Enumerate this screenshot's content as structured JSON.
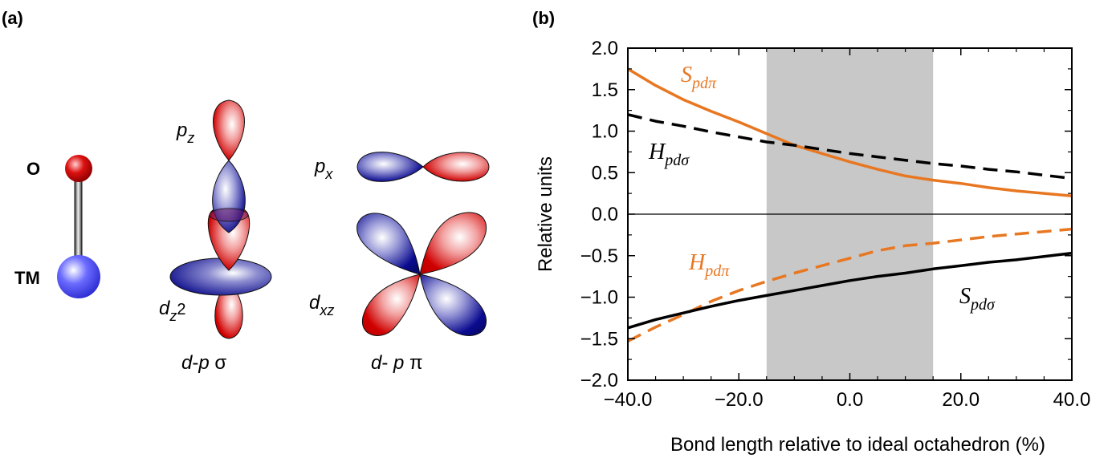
{
  "panel_a": {
    "label": "(a)",
    "atom_o": "O",
    "atom_tm": "TM",
    "pz": {
      "base": "p",
      "sub": "z"
    },
    "dz2": {
      "base": "d",
      "sub": "z",
      "sup": "2"
    },
    "sigma_caption": {
      "d": "d",
      "sep": "-",
      "p": "p",
      "sym": " σ"
    },
    "px": {
      "base": "p",
      "sub": "x"
    },
    "dxz": {
      "base": "d",
      "sub": "xz"
    },
    "pi_caption": {
      "d": "d",
      "sep": "- ",
      "p": "p",
      "sym": " π"
    },
    "colors": {
      "red_lobe": "#d00000",
      "blue_lobe": "#0a0a90",
      "o_atom": "#cc0000",
      "tm_atom": "#5a5aff"
    }
  },
  "panel_b": {
    "label": "(b)",
    "series_labels": {
      "S_pdpi": {
        "base": "S",
        "sub": "pdπ"
      },
      "H_pdsigma": {
        "base": "H",
        "sub": "pdσ"
      },
      "H_pdpi": {
        "base": "H",
        "sub": "pdπ"
      },
      "S_pdsigma": {
        "base": "S",
        "sub": "pdσ"
      }
    }
  },
  "chart_data": {
    "type": "line",
    "title": "",
    "xlabel": "Bond length relative to ideal octahedron (%)",
    "ylabel": "Relative units",
    "xlim": [
      -40,
      40
    ],
    "ylim": [
      -2.0,
      2.0
    ],
    "xticks": [
      -40,
      -20,
      0,
      20,
      40
    ],
    "xtick_labels": [
      "−40.0",
      "−20.0",
      "0.0",
      "20.0",
      "40.0"
    ],
    "yticks": [
      -2.0,
      -1.5,
      -1.0,
      -0.5,
      0.0,
      0.5,
      1.0,
      1.5,
      2.0
    ],
    "ytick_labels": [
      "−2.0",
      "−1.5",
      "−1.0",
      "−0.5",
      "0.0",
      "0.5",
      "1.0",
      "1.5",
      "2.0"
    ],
    "grid": false,
    "shaded_region": {
      "x": [
        -15,
        15
      ],
      "color": "#c8c8c8"
    },
    "zero_line": true,
    "x": [
      -40,
      -35,
      -30,
      -25,
      -20,
      -15,
      -10,
      -5,
      0,
      5,
      10,
      15,
      20,
      25,
      30,
      35,
      40
    ],
    "series": [
      {
        "id": "S_pdpi",
        "color": "#e87722",
        "style": "solid",
        "values": [
          1.75,
          1.55,
          1.38,
          1.24,
          1.11,
          0.97,
          0.83,
          0.73,
          0.63,
          0.54,
          0.46,
          0.41,
          0.37,
          0.32,
          0.28,
          0.25,
          0.22
        ]
      },
      {
        "id": "H_pdsigma",
        "color": "#000000",
        "style": "dashed",
        "values": [
          1.2,
          1.12,
          1.06,
          0.99,
          0.93,
          0.87,
          0.83,
          0.78,
          0.73,
          0.69,
          0.65,
          0.61,
          0.58,
          0.54,
          0.51,
          0.47,
          0.43
        ]
      },
      {
        "id": "H_pdpi",
        "color": "#e87722",
        "style": "dashed",
        "values": [
          -1.53,
          -1.36,
          -1.21,
          -1.05,
          -0.92,
          -0.81,
          -0.71,
          -0.62,
          -0.53,
          -0.44,
          -0.38,
          -0.35,
          -0.31,
          -0.27,
          -0.24,
          -0.21,
          -0.18
        ]
      },
      {
        "id": "S_pdsigma",
        "color": "#000000",
        "style": "solid",
        "values": [
          -1.37,
          -1.27,
          -1.19,
          -1.11,
          -1.04,
          -0.98,
          -0.92,
          -0.86,
          -0.8,
          -0.75,
          -0.71,
          -0.66,
          -0.62,
          -0.58,
          -0.55,
          -0.51,
          -0.47
        ]
      }
    ]
  }
}
